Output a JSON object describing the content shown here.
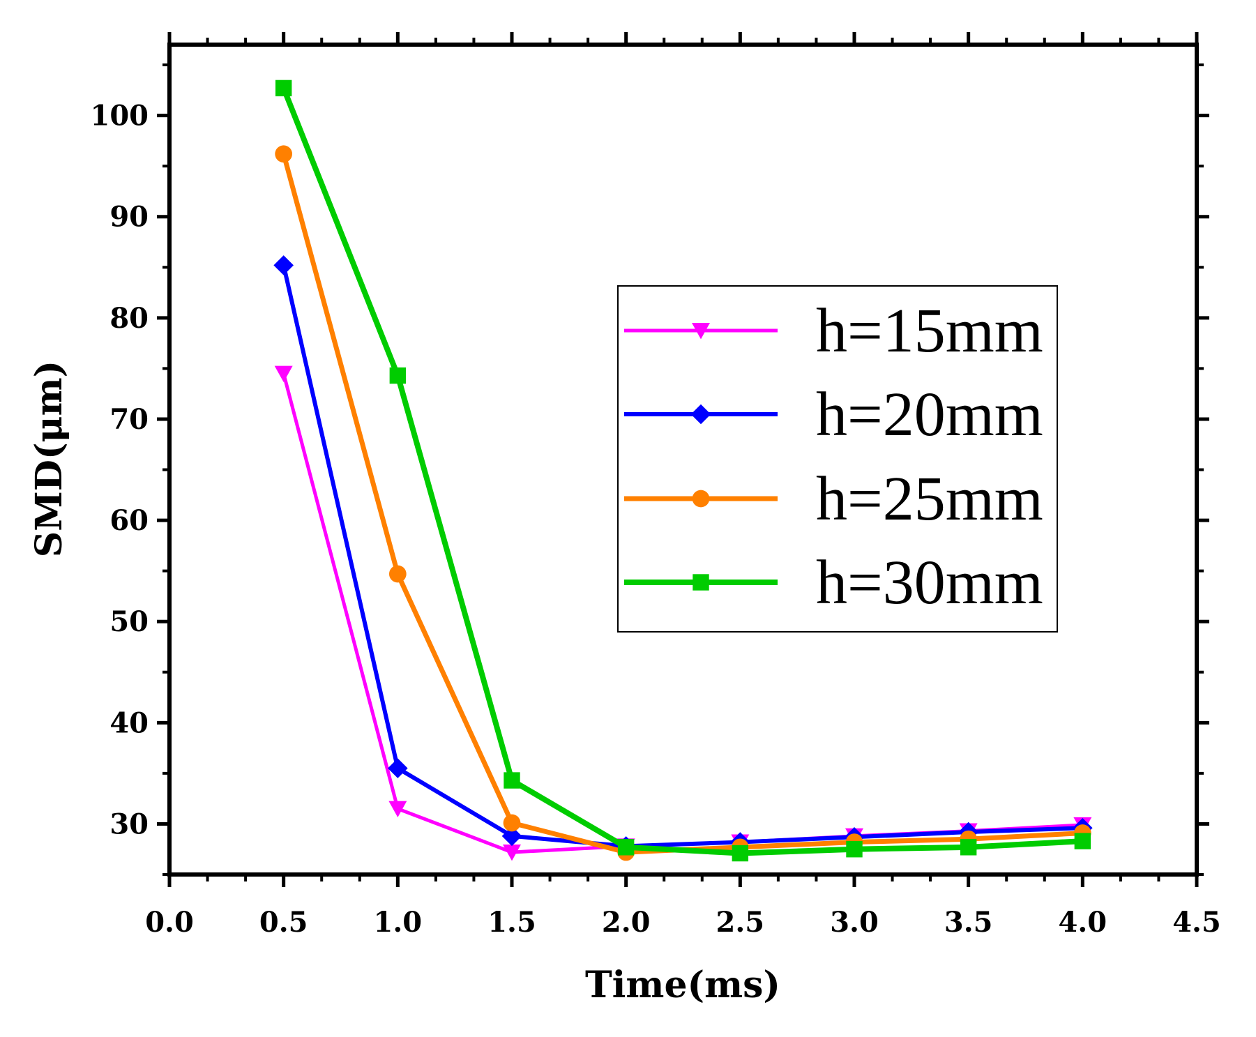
{
  "chart_data": {
    "type": "line",
    "title": "",
    "xlabel": "Time(ms)",
    "ylabel": "SMD(μm)",
    "xlim": [
      0.0,
      4.5
    ],
    "ylim": [
      25,
      107
    ],
    "xticks": [
      0.0,
      0.5,
      1.0,
      1.5,
      2.0,
      2.5,
      3.0,
      3.5,
      4.0,
      4.5
    ],
    "xtick_labels": [
      "0.0",
      "0.5",
      "1.0",
      "1.5",
      "2.0",
      "2.5",
      "3.0",
      "3.5",
      "4.0",
      "4.5"
    ],
    "yticks": [
      30,
      40,
      50,
      60,
      70,
      80,
      90,
      100
    ],
    "ytick_labels": [
      "30",
      "40",
      "50",
      "60",
      "70",
      "80",
      "90",
      "100"
    ],
    "grid": false,
    "legend_position": "center-right",
    "x": [
      0.5,
      1.0,
      1.5,
      2.0,
      2.5,
      3.0,
      3.5,
      4.0
    ],
    "series": [
      {
        "name": "h=15mm",
        "color": "#ff00ff",
        "marker": "triangle-down",
        "values": [
          74.5,
          31.5,
          27.2,
          27.8,
          28.2,
          28.8,
          29.3,
          29.9
        ]
      },
      {
        "name": "h=20mm",
        "color": "#0000ff",
        "marker": "diamond",
        "values": [
          85.2,
          35.5,
          28.8,
          27.8,
          28.2,
          28.7,
          29.2,
          29.6
        ]
      },
      {
        "name": "h=25mm",
        "color": "#ff8000",
        "marker": "circle",
        "values": [
          96.2,
          54.7,
          30.1,
          27.2,
          27.7,
          28.2,
          28.5,
          29.1
        ]
      },
      {
        "name": "h=30mm",
        "color": "#00cc00",
        "marker": "square",
        "values": [
          102.7,
          74.3,
          34.3,
          27.7,
          27.1,
          27.5,
          27.7,
          28.3
        ]
      }
    ]
  }
}
